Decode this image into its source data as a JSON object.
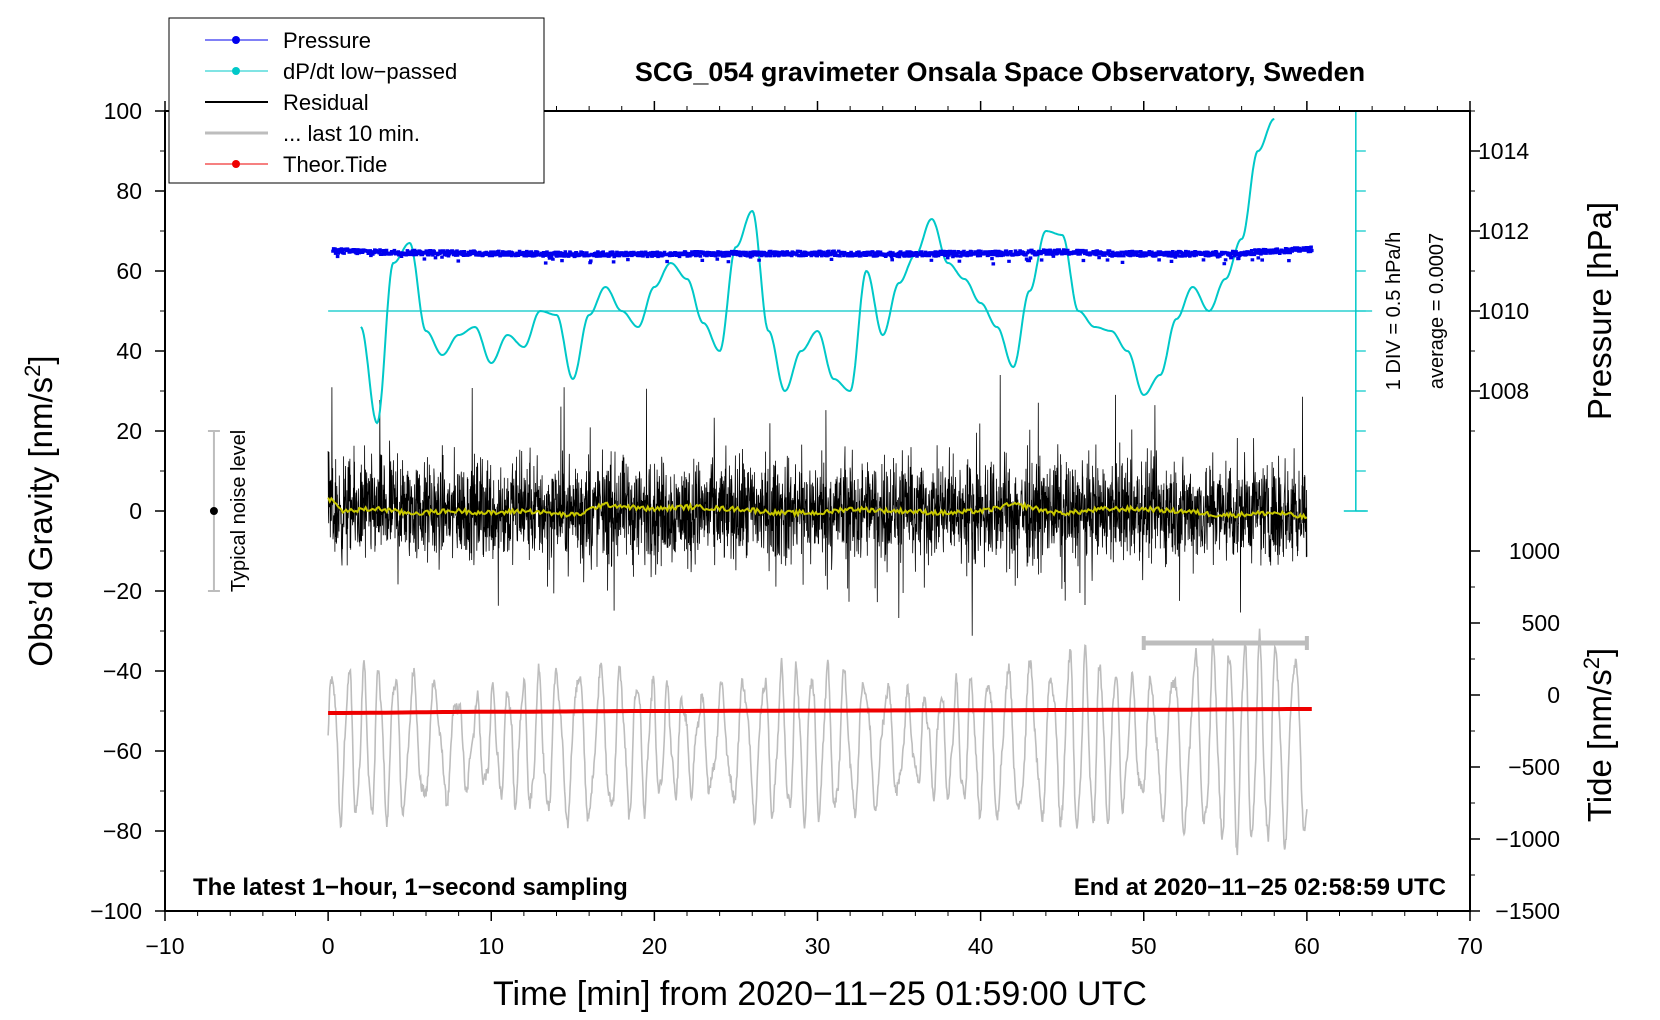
{
  "chart_data": {
    "type": "line",
    "title": "SCG_054 gravimeter Onsala Space Observatory, Sweden",
    "xlabel": "Time [min] from 2020−11−25 01:59:00 UTC",
    "ylabel_left": "Obs’d Gravity [nm/s",
    "ylabel_left_sup": "2",
    "ylabel_left_tail": "]",
    "ylabel_right_top": "Pressure [hPa]",
    "ylabel_right_bottom": "Tide [nm/s",
    "ylabel_right_bottom_sup": "2",
    "ylabel_right_bottom_tail": "]",
    "xlim": [
      -10,
      70
    ],
    "ylim_left": [
      -100,
      100
    ],
    "x_ticks": [
      "−10",
      "0",
      "10",
      "20",
      "30",
      "40",
      "50",
      "60",
      "70"
    ],
    "x_tick_values": [
      -10,
      0,
      10,
      20,
      30,
      40,
      50,
      60,
      70
    ],
    "y_left_ticks": [
      "100",
      "80",
      "60",
      "40",
      "20",
      "0",
      "−20",
      "−40",
      "−60",
      "−80",
      "−100"
    ],
    "y_left_tick_values": [
      100,
      80,
      60,
      40,
      20,
      0,
      -20,
      -40,
      -60,
      -80,
      -100
    ],
    "pressure_axis": {
      "tick_labels": [
        "1014",
        "1012",
        "1010",
        "1008"
      ],
      "tick_values": [
        1014,
        1012,
        1010,
        1008
      ],
      "hpa_at_gravity_zero": 1005,
      "hpa_at_gravity_100": 1015
    },
    "tide_axis": {
      "tick_labels": [
        "1000",
        "500",
        "0",
        "−500",
        "−1000",
        "−1500"
      ],
      "tick_values": [
        1000,
        500,
        0,
        -500,
        -1000,
        -1500
      ],
      "tide_at_gravity_neg100": -1500,
      "tide_at_gravity_neg10": 1000
    },
    "legend": [
      {
        "label": "Pressure",
        "color": "#0000ee",
        "marker": true
      },
      {
        "label": "dP/dt low−passed",
        "color": "#00c8c8",
        "marker": true
      },
      {
        "label": "Residual",
        "color": "#000000",
        "marker": false
      },
      {
        "label": "... last 10 min.",
        "color": "#bdbdbd",
        "marker": false
      },
      {
        "label": "Theor.Tide",
        "color": "#ee0000",
        "marker": true
      }
    ],
    "legend_position": "top-left",
    "annotations": {
      "bottom_left": "The latest 1−hour, 1−second sampling",
      "bottom_right": "End at 2020−11−25 02:58:59 UTC",
      "noise_label": "Typical noise level",
      "div_label": "1 DIV = 0.5 hPa/h",
      "avg_label": "average = 0.0007"
    },
    "noise_bar": {
      "x": -7,
      "y_center": 0,
      "y_low": -20,
      "y_high": 20
    },
    "ddt_scale": {
      "x": 63,
      "y_baseline": 50,
      "y_low": 0,
      "y_high": 100,
      "ticks_every": 10
    },
    "last10_bar": {
      "x0": 50,
      "x1": 60,
      "y": -33
    },
    "series": [
      {
        "name": "Pressure",
        "color": "#0000ee",
        "x": [
          0,
          5,
          10,
          15,
          20,
          25,
          30,
          35,
          40,
          45,
          50,
          55,
          58,
          60
        ],
        "y": [
          65,
          64.6,
          64.4,
          64.2,
          64.2,
          64.3,
          64.4,
          64.2,
          64.4,
          64.7,
          64.3,
          64.3,
          64.9,
          65.4
        ],
        "noise": 0.6
      },
      {
        "name": "dP/dt low-passed",
        "color": "#00c8c8",
        "x": [
          2,
          3,
          4,
          5,
          6,
          7,
          8,
          9,
          10,
          11,
          12,
          13,
          14,
          15,
          16,
          17,
          18,
          19,
          20,
          21,
          22,
          23,
          24,
          25,
          26,
          27,
          28,
          29,
          30,
          31,
          32,
          33,
          34,
          35,
          36,
          37,
          38,
          39,
          40,
          41,
          42,
          43,
          44,
          45,
          46,
          47,
          48,
          49,
          50,
          51,
          52,
          53,
          54,
          55,
          56,
          57,
          58
        ],
        "y": [
          46,
          22,
          62,
          67,
          45,
          39,
          44,
          46,
          37,
          44,
          41,
          50,
          49,
          33,
          49,
          56,
          50,
          46,
          56,
          62,
          58,
          47,
          40,
          66,
          75,
          45,
          30,
          40,
          45,
          33,
          30,
          60,
          44,
          57,
          64,
          73,
          62,
          58,
          52,
          46,
          36,
          55,
          70,
          69,
          50,
          46,
          45,
          40,
          29,
          34,
          48,
          56,
          50,
          58,
          68,
          90,
          98
        ]
      },
      {
        "name": "Residual",
        "color": "#000000",
        "x_range": [
          0,
          60
        ],
        "amplitude": 14,
        "note": "1-second sampled noise roughly within ±25 nm/s² (peaks -36 to 34)"
      },
      {
        "name": "Residual smoothed",
        "color": "#c8c800",
        "x": [
          0,
          1,
          3,
          5,
          8,
          10,
          12,
          15,
          17,
          20,
          22,
          25,
          28,
          30,
          32,
          35,
          38,
          40,
          42,
          45,
          48,
          50,
          52,
          55,
          58,
          60
        ],
        "y": [
          3,
          0,
          0.5,
          -0.5,
          0,
          -0.5,
          0,
          -1,
          1.5,
          0.5,
          1,
          0.5,
          -0.5,
          -0.5,
          0.5,
          0,
          -0.5,
          0,
          1.5,
          -0.5,
          0.5,
          0.5,
          0,
          -1,
          -0.5,
          -1.5
        ]
      },
      {
        "name": "... last 10 min.",
        "color": "#bdbdbd",
        "x_range": [
          0,
          60
        ],
        "center": -58,
        "amplitude": 15,
        "note": "oscillating trace between about -95 and -37 nm/s² equivalent"
      },
      {
        "name": "Theor.Tide",
        "color": "#ee0000",
        "x": [
          0,
          10,
          20,
          30,
          40,
          50,
          60
        ],
        "y": [
          -50.5,
          -50.2,
          -50,
          -49.9,
          -49.8,
          -49.7,
          -49.5
        ]
      }
    ]
  }
}
